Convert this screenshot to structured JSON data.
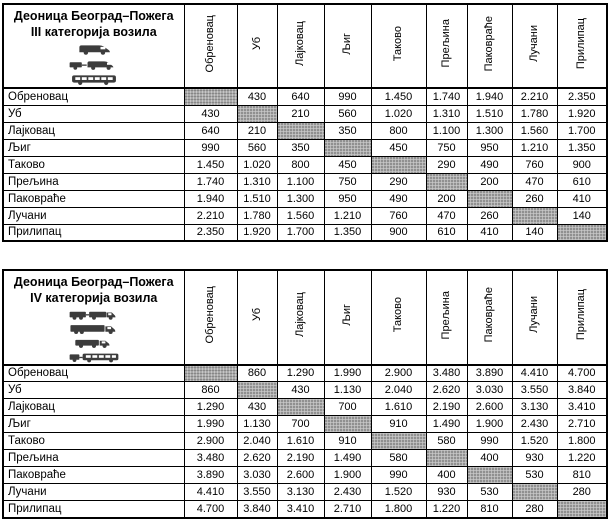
{
  "document": {
    "colors": {
      "diagonal_fill": "#a9a9a9",
      "border": "#000000",
      "text": "#000000",
      "icon": "#3c3c3c"
    },
    "tables": [
      {
        "title_line1": "Деоница Београд–Пожега",
        "title_line2": "III категорија возила",
        "vehicle_icons": [
          "van-icon",
          "van-with-trailer-icon",
          "bus-icon"
        ],
        "columns": [
          "Обреновац",
          "Уб",
          "Лајковац",
          "Љиг",
          "Таково",
          "Прељина",
          "Паковраће",
          "Лучани",
          "Прилипац"
        ],
        "rows": [
          {
            "label": "Обреновац",
            "values": [
              null,
              "430",
              "640",
              "990",
              "1.450",
              "1.740",
              "1.940",
              "2.210",
              "2.350"
            ]
          },
          {
            "label": "Уб",
            "values": [
              "430",
              null,
              "210",
              "560",
              "1.020",
              "1.310",
              "1.510",
              "1.780",
              "1.920"
            ]
          },
          {
            "label": "Лајковац",
            "values": [
              "640",
              "210",
              null,
              "350",
              "800",
              "1.100",
              "1.300",
              "1.560",
              "1.700"
            ]
          },
          {
            "label": "Љиг",
            "values": [
              "990",
              "560",
              "350",
              null,
              "450",
              "750",
              "950",
              "1.210",
              "1.350"
            ]
          },
          {
            "label": "Таково",
            "values": [
              "1.450",
              "1.020",
              "800",
              "450",
              null,
              "290",
              "490",
              "760",
              "900"
            ]
          },
          {
            "label": "Прељина",
            "values": [
              "1.740",
              "1.310",
              "1.100",
              "750",
              "290",
              null,
              "200",
              "470",
              "610"
            ]
          },
          {
            "label": "Паковраће",
            "values": [
              "1.940",
              "1.510",
              "1.300",
              "950",
              "490",
              "200",
              null,
              "260",
              "410"
            ]
          },
          {
            "label": "Лучани",
            "values": [
              "2.210",
              "1.780",
              "1.560",
              "1.210",
              "760",
              "470",
              "260",
              null,
              "140"
            ]
          },
          {
            "label": "Прилипац",
            "values": [
              "2.350",
              "1.920",
              "1.700",
              "1.350",
              "900",
              "610",
              "410",
              "140",
              null
            ]
          }
        ]
      },
      {
        "title_line1": "Деоница Београд–Пожега",
        "title_line2": "IV категорија возила",
        "vehicle_icons": [
          "truck-with-trailer-icon",
          "semi-trailer-truck-icon",
          "truck-icon",
          "truck-with-long-trailer-icon"
        ],
        "columns": [
          "Обреновац",
          "Уб",
          "Лајковац",
          "Љиг",
          "Таково",
          "Прељина",
          "Паковраће",
          "Лучани",
          "Прилипац"
        ],
        "rows": [
          {
            "label": "Обреновац",
            "values": [
              null,
              "860",
              "1.290",
              "1.990",
              "2.900",
              "3.480",
              "3.890",
              "4.410",
              "4.700"
            ]
          },
          {
            "label": "Уб",
            "values": [
              "860",
              null,
              "430",
              "1.130",
              "2.040",
              "2.620",
              "3.030",
              "3.550",
              "3.840"
            ]
          },
          {
            "label": "Лајковац",
            "values": [
              "1.290",
              "430",
              null,
              "700",
              "1.610",
              "2.190",
              "2.600",
              "3.130",
              "3.410"
            ]
          },
          {
            "label": "Љиг",
            "values": [
              "1.990",
              "1.130",
              "700",
              null,
              "910",
              "1.490",
              "1.900",
              "2.430",
              "2.710"
            ]
          },
          {
            "label": "Таково",
            "values": [
              "2.900",
              "2.040",
              "1.610",
              "910",
              null,
              "580",
              "990",
              "1.520",
              "1.800"
            ]
          },
          {
            "label": "Прељина",
            "values": [
              "3.480",
              "2.620",
              "2.190",
              "1.490",
              "580",
              null,
              "400",
              "930",
              "1.220"
            ]
          },
          {
            "label": "Паковраће",
            "values": [
              "3.890",
              "3.030",
              "2.600",
              "1.900",
              "990",
              "400",
              null,
              "530",
              "810"
            ]
          },
          {
            "label": "Лучани",
            "values": [
              "4.410",
              "3.550",
              "3.130",
              "2.430",
              "1.520",
              "930",
              "530",
              null,
              "280"
            ]
          },
          {
            "label": "Прилипац",
            "values": [
              "4.700",
              "3.840",
              "3.410",
              "2.710",
              "1.800",
              "1.220",
              "810",
              "280",
              null
            ]
          }
        ]
      }
    ]
  }
}
